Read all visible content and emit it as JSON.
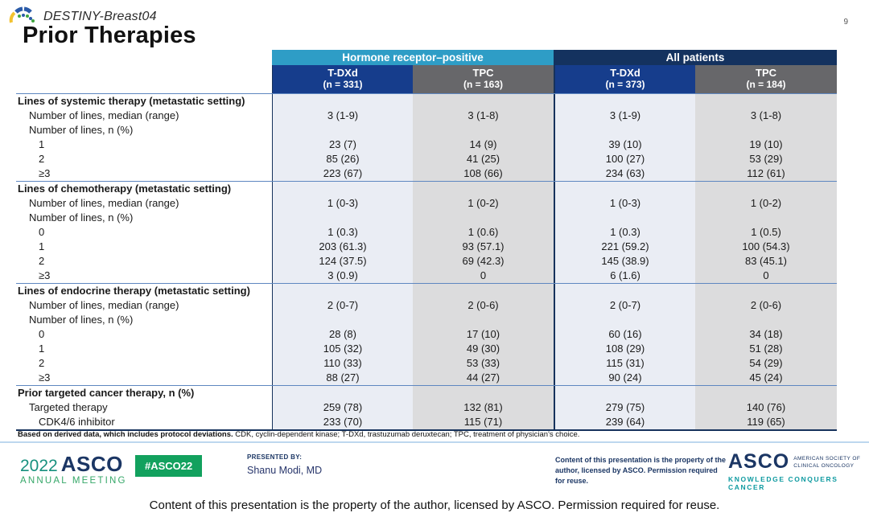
{
  "page": {
    "number": "9"
  },
  "header": {
    "study": "DESTINY-Breast04",
    "title": "Prior Therapies"
  },
  "table": {
    "group_headers": [
      {
        "label": "Hormone receptor–positive"
      },
      {
        "label": "All patients"
      }
    ],
    "col_headers": [
      {
        "name": "T-DXd",
        "n": "(n = 331)",
        "type": "tdxd"
      },
      {
        "name": "TPC",
        "n": "(n = 163)",
        "type": "tpc"
      },
      {
        "name": "T-DXd",
        "n": "(n = 373)",
        "type": "tdxd"
      },
      {
        "name": "TPC",
        "n": "(n = 184)",
        "type": "tpc"
      }
    ],
    "rows": [
      {
        "label": "Lines of systemic therapy (metastatic setting)",
        "indent": 0,
        "bold": true,
        "section_start": true,
        "values": [
          "",
          "",
          "",
          ""
        ]
      },
      {
        "label": "Number of lines, median (range)",
        "indent": 1,
        "bold": false,
        "section_start": false,
        "values": [
          "3 (1-9)",
          "3 (1-8)",
          "3 (1-9)",
          "3 (1-8)"
        ]
      },
      {
        "label": "Number of lines, n (%)",
        "indent": 1,
        "bold": false,
        "section_start": false,
        "values": [
          "",
          "",
          "",
          ""
        ]
      },
      {
        "label": "1",
        "indent": 2,
        "bold": false,
        "section_start": false,
        "values": [
          "23 (7)",
          "14 (9)",
          "39 (10)",
          "19 (10)"
        ]
      },
      {
        "label": "2",
        "indent": 2,
        "bold": false,
        "section_start": false,
        "values": [
          "85 (26)",
          "41 (25)",
          "100 (27)",
          "53 (29)"
        ]
      },
      {
        "label": "≥3",
        "indent": 2,
        "bold": false,
        "section_start": false,
        "values": [
          "223 (67)",
          "108 (66)",
          "234 (63)",
          "112 (61)"
        ]
      },
      {
        "label": "Lines of chemotherapy (metastatic setting)",
        "indent": 0,
        "bold": true,
        "section_start": true,
        "values": [
          "",
          "",
          "",
          ""
        ]
      },
      {
        "label": "Number of lines, median (range)",
        "indent": 1,
        "bold": false,
        "section_start": false,
        "values": [
          "1 (0-3)",
          "1 (0-2)",
          "1 (0-3)",
          "1 (0-2)"
        ]
      },
      {
        "label": "Number of lines, n (%)",
        "indent": 1,
        "bold": false,
        "section_start": false,
        "values": [
          "",
          "",
          "",
          ""
        ]
      },
      {
        "label": "0",
        "indent": 2,
        "bold": false,
        "section_start": false,
        "values": [
          "1 (0.3)",
          "1 (0.6)",
          "1 (0.3)",
          "1 (0.5)"
        ]
      },
      {
        "label": "1",
        "indent": 2,
        "bold": false,
        "section_start": false,
        "values": [
          "203 (61.3)",
          "93 (57.1)",
          "221 (59.2)",
          "100 (54.3)"
        ]
      },
      {
        "label": "2",
        "indent": 2,
        "bold": false,
        "section_start": false,
        "values": [
          "124 (37.5)",
          "69 (42.3)",
          "145 (38.9)",
          "83 (45.1)"
        ]
      },
      {
        "label": "≥3",
        "indent": 2,
        "bold": false,
        "section_start": false,
        "values": [
          "3 (0.9)",
          "0",
          "6 (1.6)",
          "0"
        ]
      },
      {
        "label": "Lines of endocrine therapy (metastatic setting)",
        "indent": 0,
        "bold": true,
        "section_start": true,
        "values": [
          "",
          "",
          "",
          ""
        ]
      },
      {
        "label": "Number of lines, median (range)",
        "indent": 1,
        "bold": false,
        "section_start": false,
        "values": [
          "2 (0-7)",
          "2 (0-6)",
          "2 (0-7)",
          "2 (0-6)"
        ]
      },
      {
        "label": "Number of lines, n (%)",
        "indent": 1,
        "bold": false,
        "section_start": false,
        "values": [
          "",
          "",
          "",
          ""
        ]
      },
      {
        "label": "0",
        "indent": 2,
        "bold": false,
        "section_start": false,
        "values": [
          "28 (8)",
          "17 (10)",
          "60 (16)",
          "34 (18)"
        ]
      },
      {
        "label": "1",
        "indent": 2,
        "bold": false,
        "section_start": false,
        "values": [
          "105 (32)",
          "49 (30)",
          "108 (29)",
          "51 (28)"
        ]
      },
      {
        "label": "2",
        "indent": 2,
        "bold": false,
        "section_start": false,
        "values": [
          "110 (33)",
          "53 (33)",
          "115 (31)",
          "54 (29)"
        ]
      },
      {
        "label": "≥3",
        "indent": 2,
        "bold": false,
        "section_start": false,
        "values": [
          "88 (27)",
          "44 (27)",
          "90 (24)",
          "45 (24)"
        ]
      },
      {
        "label": "Prior targeted cancer therapy, n (%)",
        "indent": 0,
        "bold": true,
        "section_start": true,
        "values": [
          "",
          "",
          "",
          ""
        ]
      },
      {
        "label": "Targeted therapy",
        "indent": 1,
        "bold": false,
        "section_start": false,
        "values": [
          "259 (78)",
          "132 (81)",
          "279 (75)",
          "140 (76)"
        ]
      },
      {
        "label": "CDK4/6 inhibitor",
        "indent": 2,
        "bold": false,
        "section_start": false,
        "values": [
          "233 (70)",
          "115 (71)",
          "239 (64)",
          "119 (65)"
        ]
      }
    ]
  },
  "footnote": {
    "bold": "Based on derived data, which includes protocol deviations.",
    "regular": " CDK, cyclin-dependent kinase; T-DXd, trastuzumab deruxtecan; TPC, treatment of physician's choice."
  },
  "footer": {
    "meeting_year": "2022",
    "meeting_org": "ASCO",
    "meeting_sub": "ANNUAL MEETING",
    "hashtag": "#ASCO22",
    "presented_label": "PRESENTED BY:",
    "presenter": "Shanu Modi, MD",
    "permission_small": "Content of this presentation is the property of the author, licensed by ASCO. Permission required for reuse.",
    "asco_mark": "ASCO",
    "asco_society_line1": "AMERICAN SOCIETY OF",
    "asco_society_line2": "CLINICAL ONCOLOGY",
    "asco_tagline": "KNOWLEDGE CONQUERS CANCER",
    "bottom_text": "Content of this presentation  is the property of the author, licensed by ASCO. Permission required for reuse."
  },
  "colors": {
    "group_hr_positive": "#2E9DC6",
    "group_all_patients": "#14325F",
    "tdxd_header": "#163D8C",
    "tpc_header": "#67676A",
    "tdxd_column": "#EAEDF4",
    "tpc_column": "#DCDCDD",
    "section_rule": "#5E87C0",
    "table_bottom_rule": "#16325C",
    "footer_rule": "#BDD7EE",
    "asco_navy": "#1B3664",
    "asco_green": "#12A15E",
    "asco_teal": "#0E9AA0"
  }
}
